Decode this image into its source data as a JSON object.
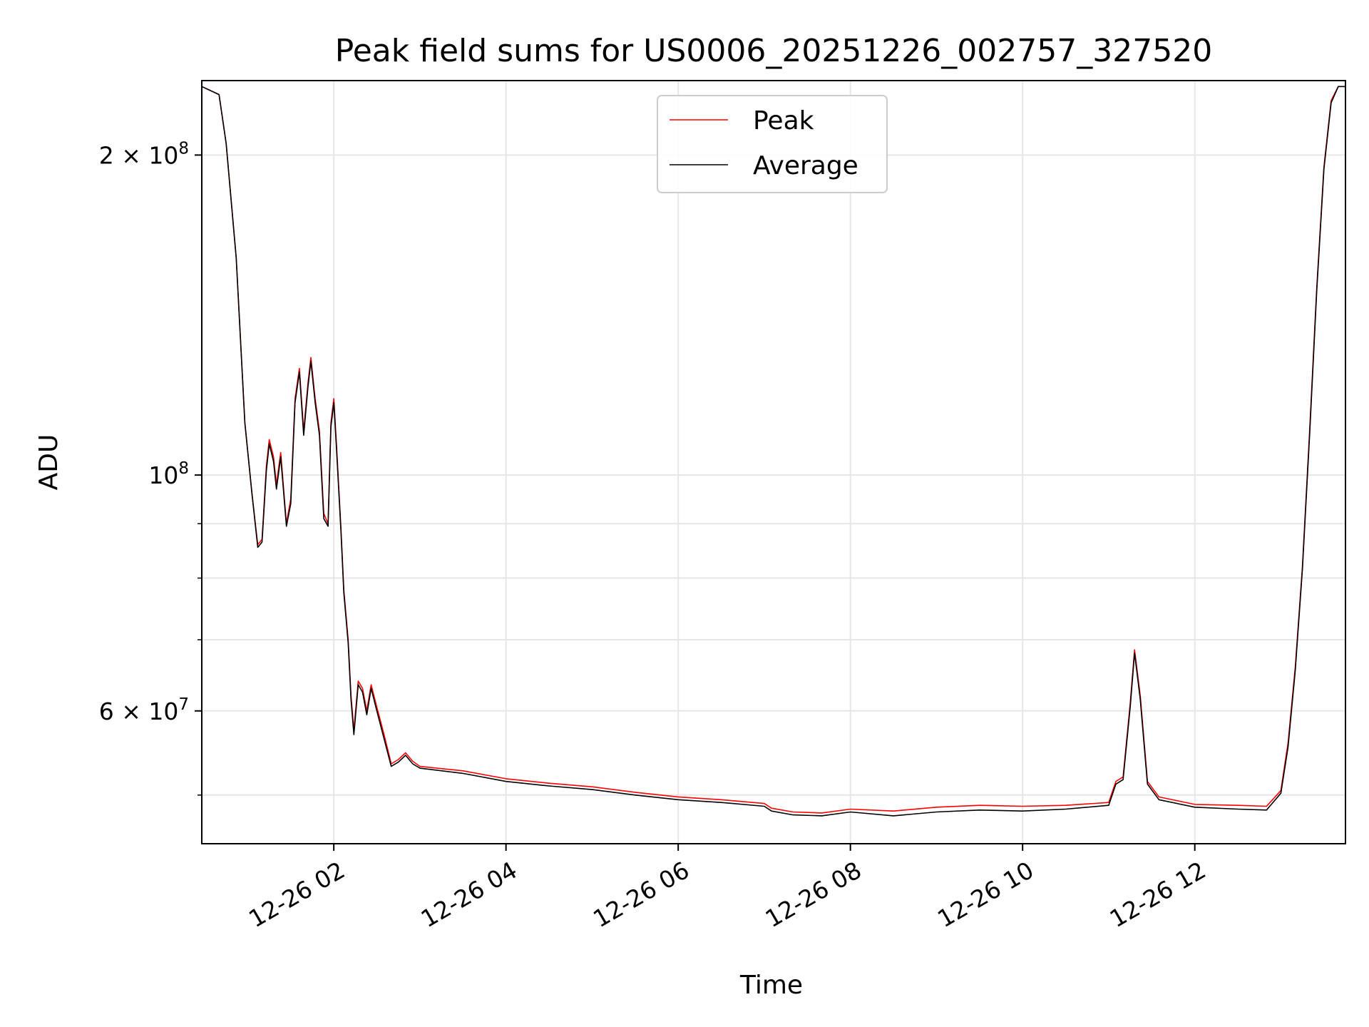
{
  "chart_data": {
    "type": "line",
    "title": "Peak field sums for US0006_20251226_002757_327520",
    "xlabel": "Time",
    "ylabel": "ADU",
    "yscale": "log",
    "x_range": [
      "2025-12-26 00:28",
      "2025-12-26 13:45"
    ],
    "ylim": [
      45000000,
      235000000
    ],
    "grid": true,
    "legend_position": "top-center",
    "x_ticks": [
      {
        "t": "2025-12-26 02:00",
        "label": "12-26 02"
      },
      {
        "t": "2025-12-26 04:00",
        "label": "12-26 04"
      },
      {
        "t": "2025-12-26 06:00",
        "label": "12-26 06"
      },
      {
        "t": "2025-12-26 08:00",
        "label": "12-26 08"
      },
      {
        "t": "2025-12-26 10:00",
        "label": "12-26 10"
      },
      {
        "t": "2025-12-26 12:00",
        "label": "12-26 12"
      }
    ],
    "y_ticks": [
      {
        "value": 200000000,
        "base": "2 × 10",
        "exp": "8"
      },
      {
        "value": 100000000,
        "base": "10",
        "exp": "8"
      },
      {
        "value": 60000000,
        "base": "6 × 10",
        "exp": "7"
      }
    ],
    "y_minor_ticks": [
      50000000,
      70000000,
      80000000,
      90000000
    ],
    "series": [
      {
        "name": "Peak",
        "color": "#ff0000",
        "points": [
          [
            "2025-12-26 00:28",
            232000000
          ],
          [
            "2025-12-26 00:40",
            228000000
          ],
          [
            "2025-12-26 00:45",
            205000000
          ],
          [
            "2025-12-26 00:52",
            160000000
          ],
          [
            "2025-12-26 00:58",
            112000000
          ],
          [
            "2025-12-26 01:03",
            96000000
          ],
          [
            "2025-12-26 01:07",
            86000000
          ],
          [
            "2025-12-26 01:10",
            87000000
          ],
          [
            "2025-12-26 01:13",
            102000000
          ],
          [
            "2025-12-26 01:15",
            108000000
          ],
          [
            "2025-12-26 01:18",
            104000000
          ],
          [
            "2025-12-26 01:20",
            98000000
          ],
          [
            "2025-12-26 01:23",
            105000000
          ],
          [
            "2025-12-26 01:27",
            90000000
          ],
          [
            "2025-12-26 01:30",
            95000000
          ],
          [
            "2025-12-26 01:33",
            118000000
          ],
          [
            "2025-12-26 01:36",
            126000000
          ],
          [
            "2025-12-26 01:39",
            110000000
          ],
          [
            "2025-12-26 01:42",
            122000000
          ],
          [
            "2025-12-26 01:44",
            129000000
          ],
          [
            "2025-12-26 01:47",
            118000000
          ],
          [
            "2025-12-26 01:50",
            110000000
          ],
          [
            "2025-12-26 01:53",
            92000000
          ],
          [
            "2025-12-26 01:56",
            90000000
          ],
          [
            "2025-12-26 01:58",
            112000000
          ],
          [
            "2025-12-26 02:00",
            118000000
          ],
          [
            "2025-12-26 02:02",
            106000000
          ],
          [
            "2025-12-26 02:05",
            89000000
          ],
          [
            "2025-12-26 02:07",
            78000000
          ],
          [
            "2025-12-26 02:10",
            70000000
          ],
          [
            "2025-12-26 02:12",
            62000000
          ],
          [
            "2025-12-26 02:14",
            57500000
          ],
          [
            "2025-12-26 02:17",
            64000000
          ],
          [
            "2025-12-26 02:20",
            63000000
          ],
          [
            "2025-12-26 02:23",
            60000000
          ],
          [
            "2025-12-26 02:26",
            63500000
          ],
          [
            "2025-12-26 02:30",
            60500000
          ],
          [
            "2025-12-26 02:35",
            57000000
          ],
          [
            "2025-12-26 02:40",
            53500000
          ],
          [
            "2025-12-26 02:45",
            54000000
          ],
          [
            "2025-12-26 02:50",
            54800000
          ],
          [
            "2025-12-26 02:55",
            53800000
          ],
          [
            "2025-12-26 03:00",
            53200000
          ],
          [
            "2025-12-26 03:30",
            52700000
          ],
          [
            "2025-12-26 04:00",
            51800000
          ],
          [
            "2025-12-26 04:30",
            51300000
          ],
          [
            "2025-12-26 05:00",
            50900000
          ],
          [
            "2025-12-26 05:30",
            50300000
          ],
          [
            "2025-12-26 06:00",
            49800000
          ],
          [
            "2025-12-26 06:30",
            49500000
          ],
          [
            "2025-12-26 07:00",
            49100000
          ],
          [
            "2025-12-26 07:05",
            48600000
          ],
          [
            "2025-12-26 07:20",
            48200000
          ],
          [
            "2025-12-26 07:40",
            48100000
          ],
          [
            "2025-12-26 08:00",
            48500000
          ],
          [
            "2025-12-26 08:30",
            48300000
          ],
          [
            "2025-12-26 09:00",
            48700000
          ],
          [
            "2025-12-26 09:30",
            48900000
          ],
          [
            "2025-12-26 10:00",
            48800000
          ],
          [
            "2025-12-26 10:30",
            48900000
          ],
          [
            "2025-12-26 11:00",
            49200000
          ],
          [
            "2025-12-26 11:05",
            51500000
          ],
          [
            "2025-12-26 11:10",
            52000000
          ],
          [
            "2025-12-26 11:15",
            61000000
          ],
          [
            "2025-12-26 11:18",
            68500000
          ],
          [
            "2025-12-26 11:22",
            62000000
          ],
          [
            "2025-12-26 11:27",
            51500000
          ],
          [
            "2025-12-26 11:35",
            49800000
          ],
          [
            "2025-12-26 12:00",
            49000000
          ],
          [
            "2025-12-26 12:30",
            48900000
          ],
          [
            "2025-12-26 12:50",
            48800000
          ],
          [
            "2025-12-26 13:00",
            50500000
          ],
          [
            "2025-12-26 13:05",
            56000000
          ],
          [
            "2025-12-26 13:10",
            66000000
          ],
          [
            "2025-12-26 13:15",
            82000000
          ],
          [
            "2025-12-26 13:20",
            110000000
          ],
          [
            "2025-12-26 13:25",
            150000000
          ],
          [
            "2025-12-26 13:30",
            195000000
          ],
          [
            "2025-12-26 13:35",
            225000000
          ],
          [
            "2025-12-26 13:40",
            232000000
          ],
          [
            "2025-12-26 13:45",
            232000000
          ]
        ]
      },
      {
        "name": "Average",
        "color": "#000000",
        "points": [
          [
            "2025-12-26 00:28",
            232000000
          ],
          [
            "2025-12-26 00:40",
            228000000
          ],
          [
            "2025-12-26 00:45",
            205000000
          ],
          [
            "2025-12-26 00:52",
            160000000
          ],
          [
            "2025-12-26 00:58",
            112000000
          ],
          [
            "2025-12-26 01:03",
            96000000
          ],
          [
            "2025-12-26 01:07",
            85500000
          ],
          [
            "2025-12-26 01:10",
            86500000
          ],
          [
            "2025-12-26 01:13",
            101000000
          ],
          [
            "2025-12-26 01:15",
            107000000
          ],
          [
            "2025-12-26 01:18",
            103000000
          ],
          [
            "2025-12-26 01:20",
            97000000
          ],
          [
            "2025-12-26 01:23",
            104000000
          ],
          [
            "2025-12-26 01:27",
            89500000
          ],
          [
            "2025-12-26 01:30",
            94000000
          ],
          [
            "2025-12-26 01:33",
            117000000
          ],
          [
            "2025-12-26 01:36",
            125000000
          ],
          [
            "2025-12-26 01:39",
            109000000
          ],
          [
            "2025-12-26 01:42",
            121000000
          ],
          [
            "2025-12-26 01:44",
            128000000
          ],
          [
            "2025-12-26 01:47",
            117000000
          ],
          [
            "2025-12-26 01:50",
            109000000
          ],
          [
            "2025-12-26 01:53",
            91000000
          ],
          [
            "2025-12-26 01:56",
            89500000
          ],
          [
            "2025-12-26 01:58",
            111000000
          ],
          [
            "2025-12-26 02:00",
            117000000
          ],
          [
            "2025-12-26 02:02",
            105000000
          ],
          [
            "2025-12-26 02:05",
            88500000
          ],
          [
            "2025-12-26 02:07",
            77500000
          ],
          [
            "2025-12-26 02:10",
            69500000
          ],
          [
            "2025-12-26 02:12",
            61500000
          ],
          [
            "2025-12-26 02:14",
            57000000
          ],
          [
            "2025-12-26 02:17",
            63500000
          ],
          [
            "2025-12-26 02:20",
            62500000
          ],
          [
            "2025-12-26 02:23",
            59500000
          ],
          [
            "2025-12-26 02:26",
            63000000
          ],
          [
            "2025-12-26 02:30",
            60000000
          ],
          [
            "2025-12-26 02:35",
            56500000
          ],
          [
            "2025-12-26 02:40",
            53200000
          ],
          [
            "2025-12-26 02:45",
            53700000
          ],
          [
            "2025-12-26 02:50",
            54500000
          ],
          [
            "2025-12-26 02:55",
            53500000
          ],
          [
            "2025-12-26 03:00",
            53000000
          ],
          [
            "2025-12-26 03:30",
            52400000
          ],
          [
            "2025-12-26 04:00",
            51500000
          ],
          [
            "2025-12-26 04:30",
            51000000
          ],
          [
            "2025-12-26 05:00",
            50600000
          ],
          [
            "2025-12-26 05:30",
            50000000
          ],
          [
            "2025-12-26 06:00",
            49500000
          ],
          [
            "2025-12-26 06:30",
            49200000
          ],
          [
            "2025-12-26 07:00",
            48800000
          ],
          [
            "2025-12-26 07:05",
            48300000
          ],
          [
            "2025-12-26 07:20",
            47900000
          ],
          [
            "2025-12-26 07:40",
            47800000
          ],
          [
            "2025-12-26 08:00",
            48200000
          ],
          [
            "2025-12-26 08:30",
            47800000
          ],
          [
            "2025-12-26 09:00",
            48200000
          ],
          [
            "2025-12-26 09:30",
            48400000
          ],
          [
            "2025-12-26 10:00",
            48300000
          ],
          [
            "2025-12-26 10:30",
            48500000
          ],
          [
            "2025-12-26 11:00",
            48900000
          ],
          [
            "2025-12-26 11:05",
            51200000
          ],
          [
            "2025-12-26 11:10",
            51700000
          ],
          [
            "2025-12-26 11:15",
            60500000
          ],
          [
            "2025-12-26 11:18",
            68000000
          ],
          [
            "2025-12-26 11:22",
            61500000
          ],
          [
            "2025-12-26 11:27",
            51200000
          ],
          [
            "2025-12-26 11:35",
            49500000
          ],
          [
            "2025-12-26 12:00",
            48700000
          ],
          [
            "2025-12-26 12:30",
            48500000
          ],
          [
            "2025-12-26 12:50",
            48400000
          ],
          [
            "2025-12-26 13:00",
            50200000
          ],
          [
            "2025-12-26 13:05",
            55500000
          ],
          [
            "2025-12-26 13:10",
            65500000
          ],
          [
            "2025-12-26 13:15",
            81500000
          ],
          [
            "2025-12-26 13:20",
            109000000
          ],
          [
            "2025-12-26 13:25",
            149000000
          ],
          [
            "2025-12-26 13:30",
            194000000
          ],
          [
            "2025-12-26 13:35",
            224000000
          ],
          [
            "2025-12-26 13:40",
            232000000
          ],
          [
            "2025-12-26 13:45",
            232000000
          ]
        ]
      }
    ]
  }
}
